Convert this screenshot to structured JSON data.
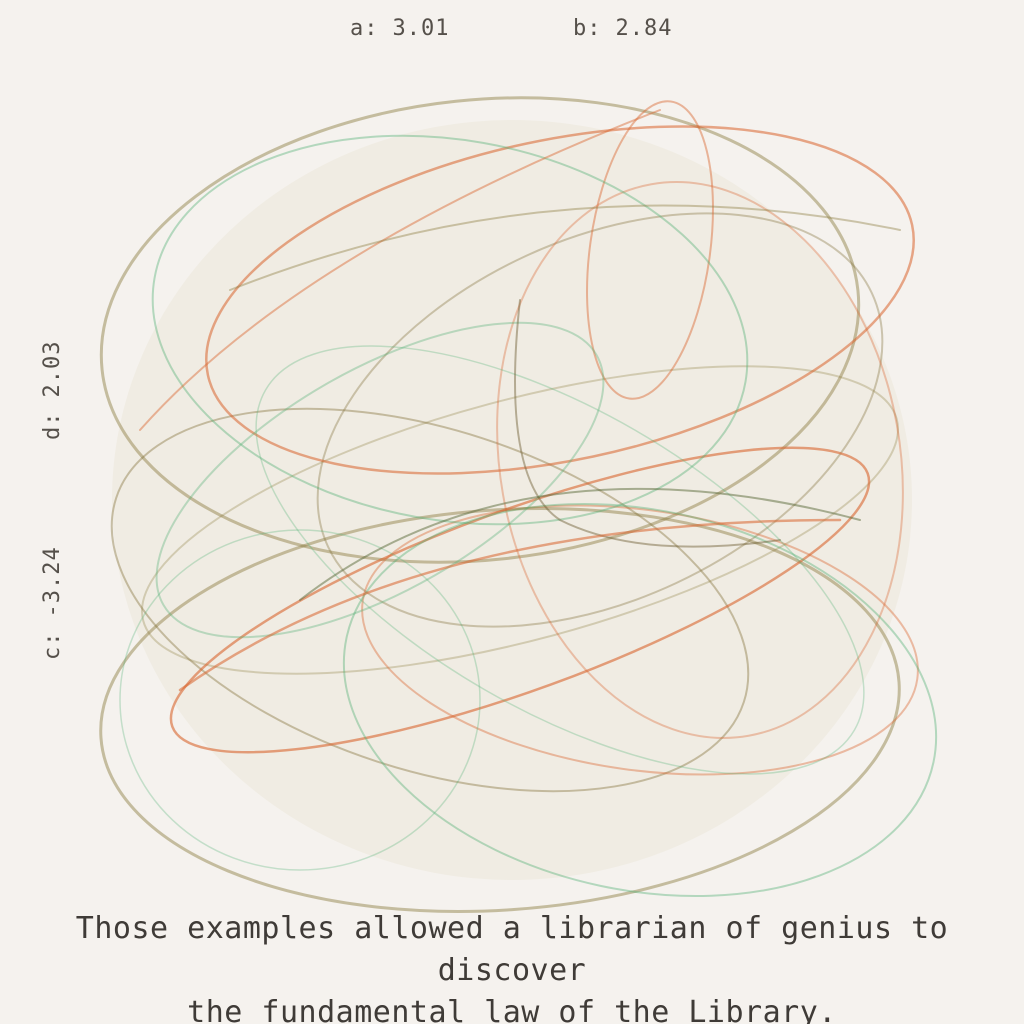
{
  "parameters": {
    "a": {
      "label": "a:",
      "value": "3.01"
    },
    "b": {
      "label": "b:",
      "value": "2.84"
    },
    "c": {
      "label": "c:",
      "value": "-3.24"
    },
    "d": {
      "label": "d:",
      "value": "2.03"
    }
  },
  "caption": {
    "line1": "Those examples allowed a librarian of genius to discover",
    "line2": "the fundamental law of the Library."
  },
  "colors": {
    "background": "#f5f2ee",
    "orange": "#d9652e",
    "olive": "#8a7a3c",
    "green": "#4fae74",
    "text": "#4d4944"
  }
}
